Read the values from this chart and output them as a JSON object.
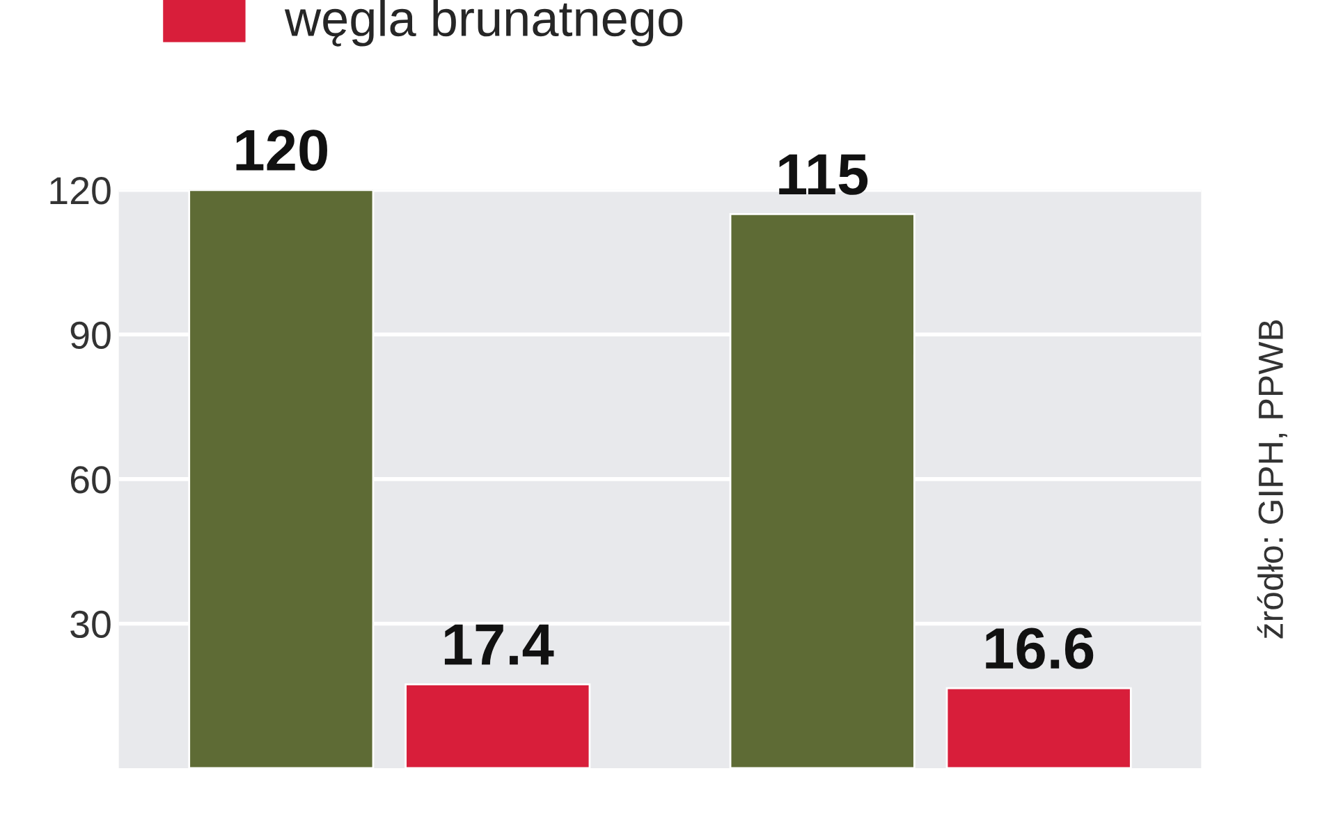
{
  "chart_data": {
    "type": "bar",
    "categories": [
      null,
      null
    ],
    "series": [
      {
        "color": "#5e6b35",
        "values": [
          120,
          115
        ]
      },
      {
        "name": "węgla brunatnego",
        "color": "#d81e3a",
        "values": [
          17.4,
          16.6
        ]
      }
    ],
    "ylim": [
      0,
      120
    ],
    "yticks": [
      30,
      60,
      90,
      120
    ],
    "grid": "y",
    "legend": "top left",
    "data_labels": true,
    "annotations": [
      "źródło: GIPH, PPWB"
    ]
  }
}
